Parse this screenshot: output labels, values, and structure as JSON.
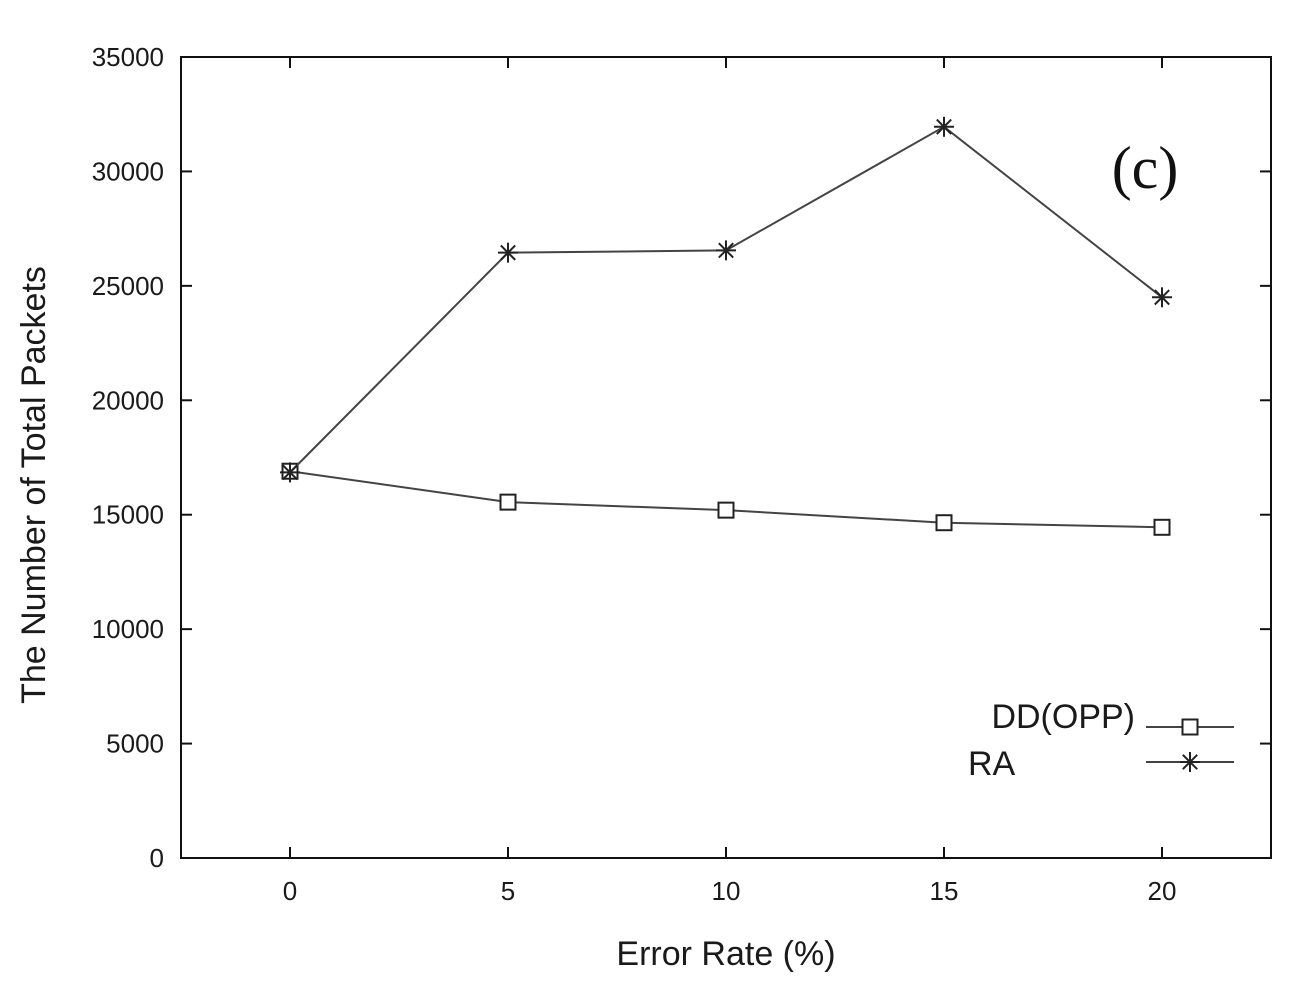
{
  "chart_data": {
    "type": "line",
    "panel_label": "(c)",
    "xlabel": "Error Rate (%)",
    "ylabel": "The Number of Total Packets",
    "xlim": [
      -2.5,
      22.5
    ],
    "ylim": [
      0,
      35000
    ],
    "x_ticks": [
      0,
      5,
      10,
      15,
      20
    ],
    "y_ticks": [
      0,
      5000,
      10000,
      15000,
      20000,
      25000,
      30000,
      35000
    ],
    "x": [
      0,
      5,
      10,
      15,
      20
    ],
    "grid": false,
    "legend_position": "bottom-right",
    "series": [
      {
        "name": "DD(OPP)",
        "marker": "square",
        "values": [
          16900,
          15550,
          15200,
          14650,
          14450
        ]
      },
      {
        "name": "RA",
        "marker": "asterisk",
        "values": [
          16850,
          26450,
          26550,
          31950,
          24500
        ]
      }
    ],
    "colors": {
      "line": "#444444",
      "marker": "#222222",
      "axis": "#111111",
      "background": "#ffffff"
    }
  }
}
